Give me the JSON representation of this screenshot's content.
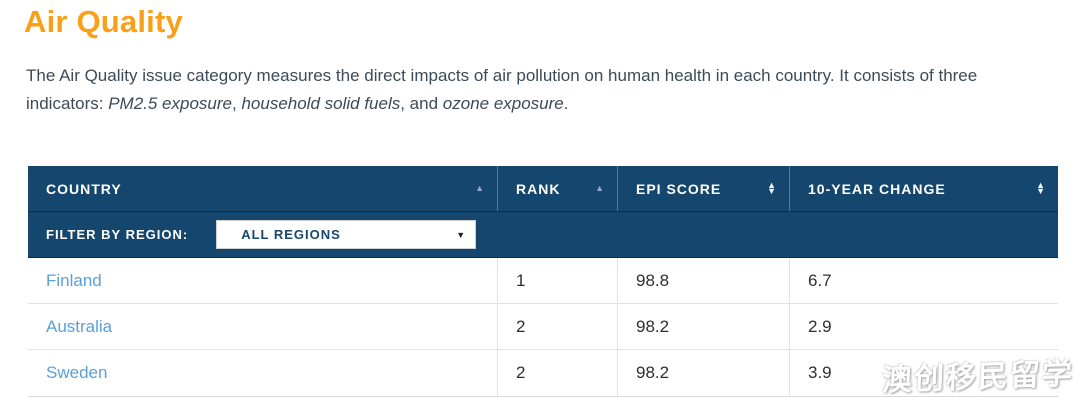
{
  "page": {
    "title": "Air Quality"
  },
  "intro": {
    "part1": "The Air Quality issue category measures the direct impacts of air pollution on human health in each country. It consists of three indicators: ",
    "indicator1": "PM2.5 exposure",
    "sep1": ", ",
    "indicator2": "household solid fuels",
    "sep2": ", and ",
    "indicator3": "ozone exposure",
    "end": "."
  },
  "table": {
    "columns": [
      {
        "label": "COUNTRY",
        "sort": "asc"
      },
      {
        "label": "RANK",
        "sort": "asc"
      },
      {
        "label": "EPI SCORE",
        "sort": "both"
      },
      {
        "label": "10-YEAR CHANGE",
        "sort": "both"
      }
    ],
    "filter": {
      "label": "FILTER BY REGION:",
      "selected_option": "ALL REGIONS"
    },
    "rows": [
      {
        "country": "Finland",
        "rank": "1",
        "epi_score": "98.8",
        "ten_year_change": "6.7"
      },
      {
        "country": "Australia",
        "rank": "2",
        "epi_score": "98.2",
        "ten_year_change": "2.9"
      },
      {
        "country": "Sweden",
        "rank": "2",
        "epi_score": "98.2",
        "ten_year_change": "3.9"
      }
    ]
  },
  "icons": {
    "sort_up": "▲",
    "sort_down": "▼",
    "dropdown_caret": "▼"
  },
  "colors": {
    "accent_orange": "#f9a01b",
    "header_navy": "#15466d",
    "link_blue": "#5ba0d9",
    "body_text": "#3d4a57"
  },
  "watermark": {
    "text": "澳创移民留学"
  }
}
